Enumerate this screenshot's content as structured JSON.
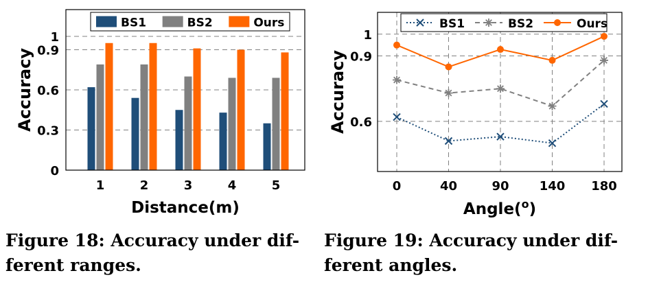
{
  "chart_data": [
    {
      "type": "bar",
      "categories": [
        "1",
        "2",
        "3",
        "4",
        "5"
      ],
      "series": [
        {
          "name": "BS1",
          "values": [
            0.62,
            0.54,
            0.45,
            0.43,
            0.35
          ]
        },
        {
          "name": "BS2",
          "values": [
            0.79,
            0.79,
            0.7,
            0.69,
            0.69
          ]
        },
        {
          "name": "Ours",
          "values": [
            0.95,
            0.95,
            0.91,
            0.9,
            0.88
          ]
        }
      ],
      "xlabel": "Distance(m)",
      "ylabel": "Accuracy",
      "yticks": [
        "0",
        "0.3",
        "0.6",
        "0.9",
        "1"
      ],
      "ylim": [
        0,
        1.2
      ],
      "grid": true,
      "legend": "top",
      "colors": [
        "#1f4e79",
        "#808080",
        "#ff6600"
      ]
    },
    {
      "type": "line",
      "categories": [
        "0",
        "40",
        "90",
        "140",
        "180"
      ],
      "series": [
        {
          "name": "BS1",
          "values": [
            0.62,
            0.51,
            0.53,
            0.5,
            0.68
          ],
          "marker": "x",
          "style": "dotted"
        },
        {
          "name": "BS2",
          "values": [
            0.79,
            0.73,
            0.75,
            0.67,
            0.88
          ],
          "marker": "star",
          "style": "dashed"
        },
        {
          "name": "Ours",
          "values": [
            0.95,
            0.85,
            0.93,
            0.88,
            0.99
          ],
          "marker": "circle",
          "style": "solid"
        }
      ],
      "xlabel": "Angle(o)",
      "ylabel": "Accuracy",
      "yticks": [
        "0.6",
        "0.9",
        "1"
      ],
      "ylim": [
        0.37,
        1.1
      ],
      "grid": true,
      "legend": "top",
      "colors": [
        "#1f4e79",
        "#808080",
        "#ff6600"
      ]
    }
  ],
  "captions": {
    "fig18": {
      "line1": "Figure 18: Accuracy under dif-",
      "line2": "ferent ranges."
    },
    "fig19": {
      "line1": "Figure 19: Accuracy under dif-",
      "line2": "ferent angles."
    }
  }
}
